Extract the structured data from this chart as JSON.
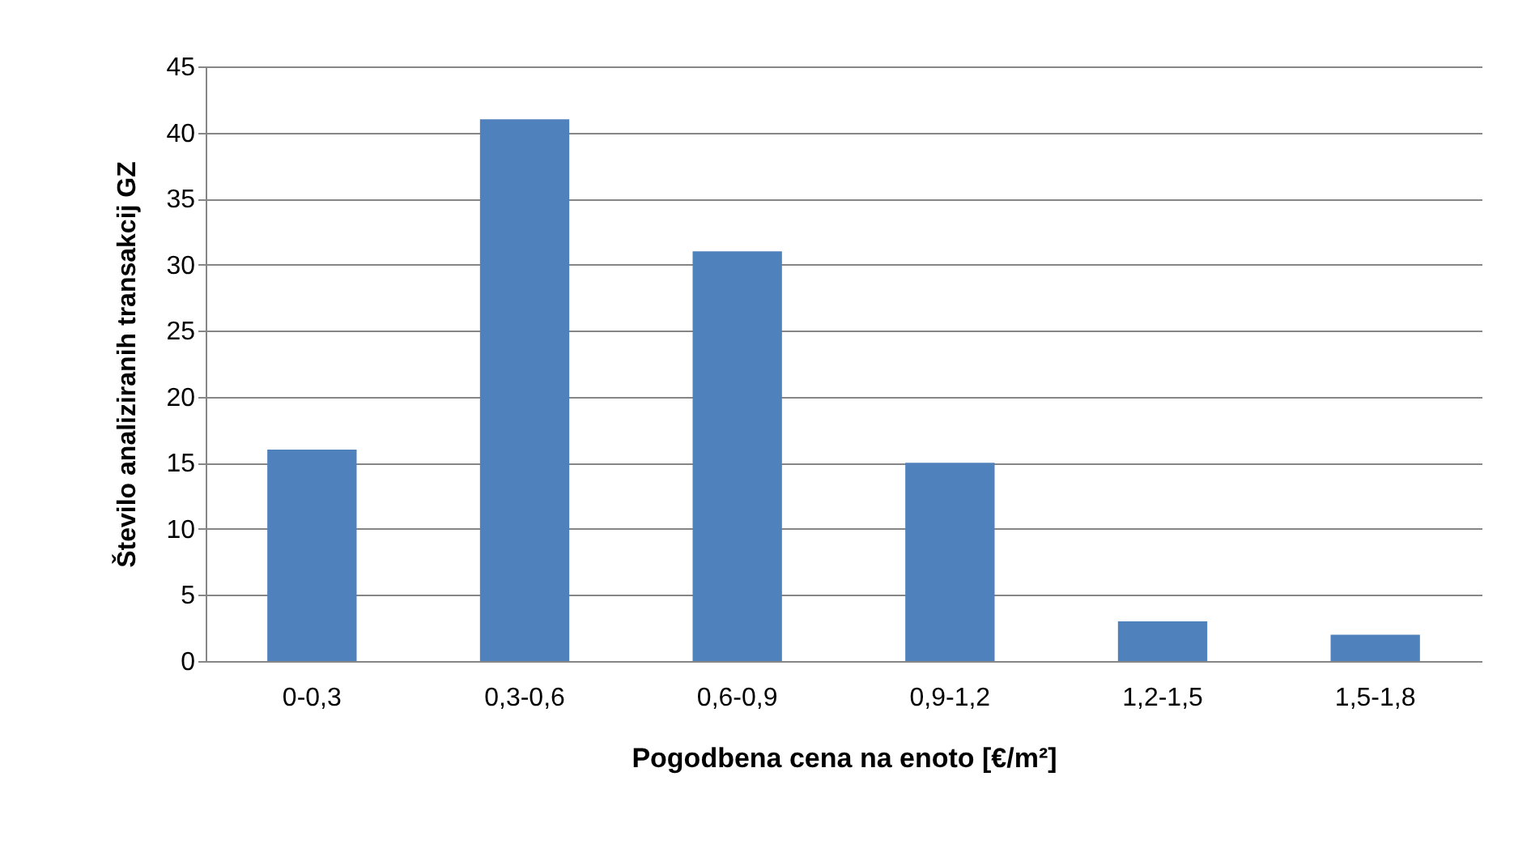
{
  "chart_data": {
    "type": "bar",
    "xlabel": "Pogodbena cena na enoto [€/m²]",
    "ylabel": "Število analiziranih transakcij GZ",
    "categories": [
      "0-0,3",
      "0,3-0,6",
      "0,6-0,9",
      "0,9-1,2",
      "1,2-1,5",
      "1,5-1,8"
    ],
    "values": [
      16,
      41,
      31,
      15,
      3,
      2
    ],
    "color": "#4f81bd",
    "ylim": [
      0,
      45
    ],
    "yticks": [
      0,
      5,
      10,
      15,
      20,
      25,
      30,
      35,
      40,
      45
    ],
    "grid": "y"
  }
}
